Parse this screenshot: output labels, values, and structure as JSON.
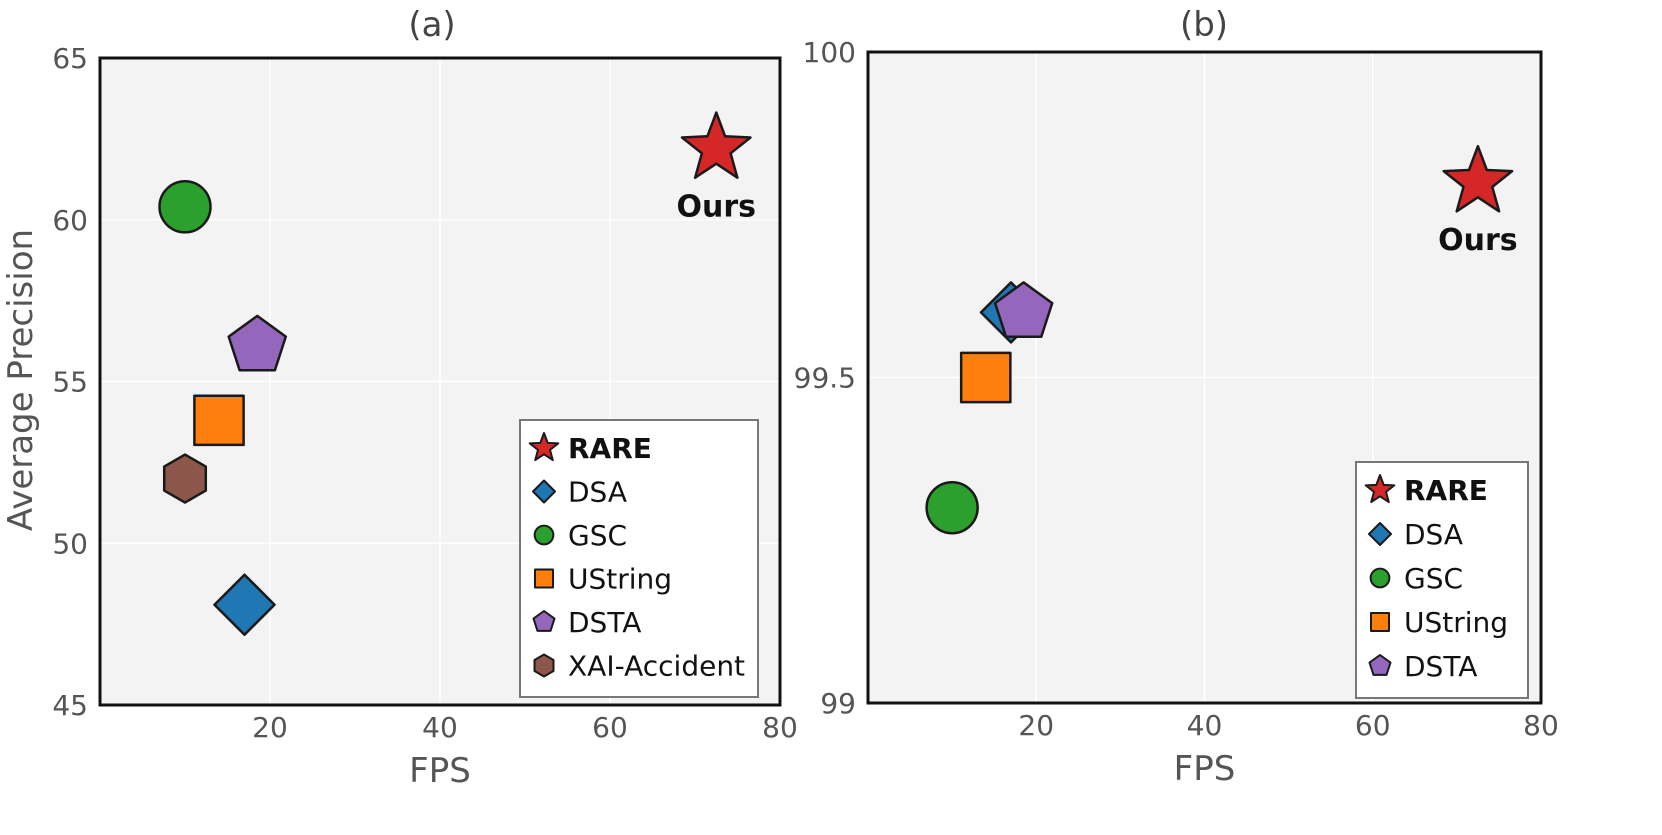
{
  "chart_data": [
    {
      "type": "scatter",
      "title": "(a)",
      "xlabel": "FPS",
      "ylabel": "Average Precision",
      "xlim": [
        0,
        80
      ],
      "ylim": [
        45,
        65
      ],
      "xticks": [
        20,
        40,
        60,
        80
      ],
      "yticks": [
        45,
        50,
        55,
        60,
        65
      ],
      "grid": true,
      "legend_position": "lower-right",
      "annotation": "Ours",
      "series": [
        {
          "name": "RARE",
          "marker": "star",
          "color": "#d62728",
          "x": 72.5,
          "y": 62.2,
          "bold": true
        },
        {
          "name": "DSA",
          "marker": "diamond",
          "color": "#1f77b4",
          "x": 17,
          "y": 48.1
        },
        {
          "name": "GSC",
          "marker": "circle",
          "color": "#2ca02c",
          "x": 10,
          "y": 60.4
        },
        {
          "name": "UString",
          "marker": "square",
          "color": "#ff7f0e",
          "x": 14,
          "y": 53.8
        },
        {
          "name": "DSTA",
          "marker": "pentagon",
          "color": "#9467bd",
          "x": 18.5,
          "y": 56.1
        },
        {
          "name": "XAI-Accident",
          "marker": "hexagon",
          "color": "#8c564b",
          "x": 10,
          "y": 52.0
        }
      ]
    },
    {
      "type": "scatter",
      "title": "(b)",
      "xlabel": "FPS",
      "ylabel": "",
      "xlim": [
        0,
        80
      ],
      "ylim": [
        99,
        100
      ],
      "xticks": [
        20,
        40,
        60,
        80
      ],
      "yticks": [
        99,
        99.5,
        100
      ],
      "grid": true,
      "legend_position": "lower-right",
      "annotation": "Ours",
      "series": [
        {
          "name": "RARE",
          "marker": "star",
          "color": "#d62728",
          "x": 72.5,
          "y": 99.8,
          "bold": true
        },
        {
          "name": "DSA",
          "marker": "diamond",
          "color": "#1f77b4",
          "x": 17,
          "y": 99.6
        },
        {
          "name": "GSC",
          "marker": "circle",
          "color": "#2ca02c",
          "x": 10,
          "y": 99.3
        },
        {
          "name": "UString",
          "marker": "square",
          "color": "#ff7f0e",
          "x": 14,
          "y": 99.5
        },
        {
          "name": "DSTA",
          "marker": "pentagon",
          "color": "#9467bd",
          "x": 18.5,
          "y": 99.6
        }
      ]
    }
  ]
}
